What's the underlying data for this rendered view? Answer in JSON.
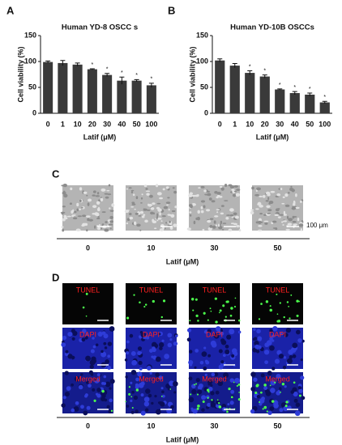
{
  "panel_letters": [
    "A",
    "B",
    "C",
    "D"
  ],
  "chart_data": [
    {
      "type": "bar",
      "title": "Human YD-8 OSCC s",
      "x_label": "Latif (μM)",
      "y_label": "Cell viability (%)",
      "categories": [
        "0",
        "1",
        "10",
        "20",
        "30",
        "40",
        "50",
        "100"
      ],
      "values": [
        99,
        97,
        94,
        85,
        74,
        63,
        63,
        54
      ],
      "errors": [
        2,
        5,
        3,
        1,
        3,
        7,
        2,
        4
      ],
      "marked": [
        false,
        false,
        false,
        true,
        true,
        true,
        true,
        true
      ],
      "mark_text": "*",
      "color": "#3a3a3a",
      "ylim": [
        0,
        150
      ],
      "yticks": [
        0,
        50,
        100,
        150
      ]
    },
    {
      "type": "bar",
      "title": "Human YD-10B  OSCCs",
      "x_label": "Latif (μM)",
      "y_label": "Cell viability (%)",
      "categories": [
        "0",
        "1",
        "10",
        "20",
        "30",
        "40",
        "50",
        "100"
      ],
      "values": [
        102,
        92,
        78,
        71,
        46,
        39,
        36,
        21
      ],
      "errors": [
        3,
        4,
        4,
        3,
        1,
        3,
        3,
        2
      ],
      "marked": [
        false,
        false,
        true,
        true,
        true,
        true,
        true,
        true
      ],
      "mark_text": "*",
      "color": "#3a3a3a",
      "ylim": [
        0,
        150
      ],
      "yticks": [
        0,
        50,
        100,
        150
      ]
    }
  ],
  "panel_c": {
    "concentrations": [
      "0",
      "10",
      "30",
      "50"
    ],
    "x_label": "Latif (μM)",
    "scale_label": "100 μm"
  },
  "panel_d": {
    "rows": [
      "TUNEL",
      "DAPI",
      "Merged"
    ],
    "concentrations": [
      "0",
      "10",
      "30",
      "50"
    ],
    "x_label": "Latif (μM)"
  }
}
